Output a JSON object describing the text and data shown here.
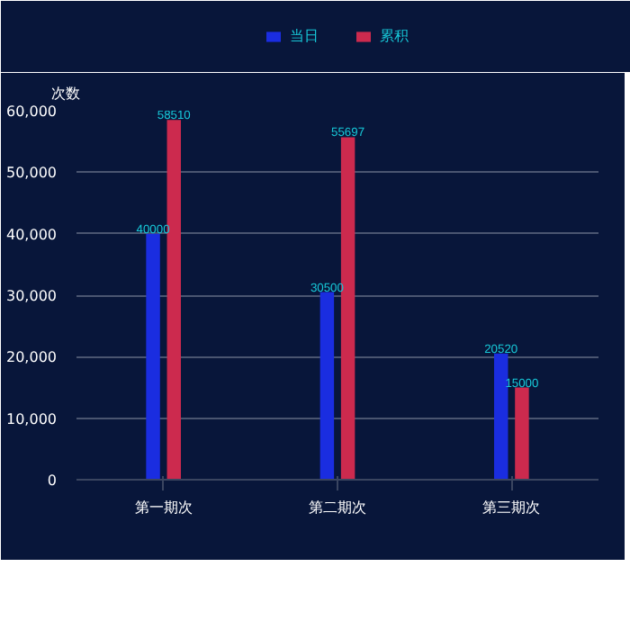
{
  "chart_data": {
    "type": "bar",
    "ylabel": "次数",
    "categories": [
      "第一期次",
      "第二期次",
      "第三期次"
    ],
    "series": [
      {
        "name": "当日",
        "color": "#1a2de0",
        "values": [
          40000,
          30500,
          20520
        ]
      },
      {
        "name": "累积",
        "color": "#cc2a4e",
        "values": [
          58510,
          55697,
          15000
        ]
      }
    ],
    "ylim": [
      0,
      60000
    ],
    "yticks": [
      {
        "value": 0,
        "label": "0"
      },
      {
        "value": 10000,
        "label": "10,000"
      },
      {
        "value": 20000,
        "label": "20,000"
      },
      {
        "value": 30000,
        "label": "30,000"
      },
      {
        "value": 40000,
        "label": "40,000"
      },
      {
        "value": 50000,
        "label": "50,000"
      },
      {
        "value": 60000,
        "label": "60,000"
      }
    ],
    "grid": "y",
    "legend": "top",
    "data_labels": true
  }
}
